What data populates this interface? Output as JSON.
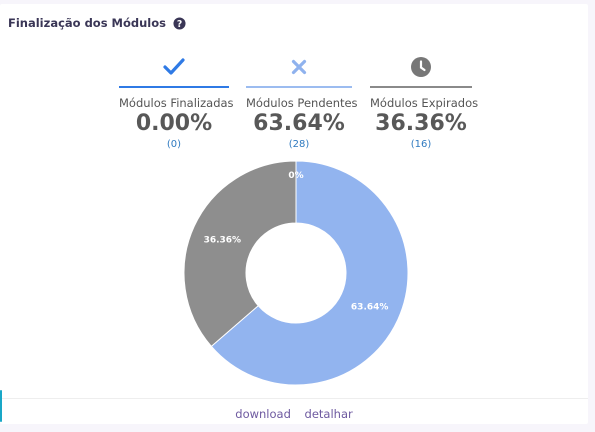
{
  "header": {
    "title": "Finalização dos Módulos"
  },
  "stats": [
    {
      "label": "Módulos Finalizadas",
      "percent": "0.00%",
      "count": "(0)",
      "icon": "check-icon",
      "color": "#2f7ae5",
      "bar_color": "#2f7ae5"
    },
    {
      "label": "Módulos Pendentes",
      "percent": "63.64%",
      "count": "(28)",
      "icon": "close-icon",
      "color": "#8fb2ee",
      "bar_color": "#9cbcf0"
    },
    {
      "label": "Módulos Expirados",
      "percent": "36.36%",
      "count": "(16)",
      "icon": "clock-icon",
      "color": "#777777",
      "bar_color": "#8a8a8a"
    }
  ],
  "footer": {
    "download": "download",
    "detail": "detalhar"
  },
  "chart_data": {
    "type": "pie",
    "donut": true,
    "start_angle_deg": 0,
    "slices": [
      {
        "label": "Módulos Finalizadas",
        "value": 0,
        "display": "0%",
        "color": "#2f7ae5"
      },
      {
        "label": "Módulos Pendentes",
        "value": 63.64,
        "display": "63.64%",
        "color": "#92b4ef"
      },
      {
        "label": "Módulos Expirados",
        "value": 36.36,
        "display": "36.36%",
        "color": "#8e8e8e"
      }
    ]
  }
}
